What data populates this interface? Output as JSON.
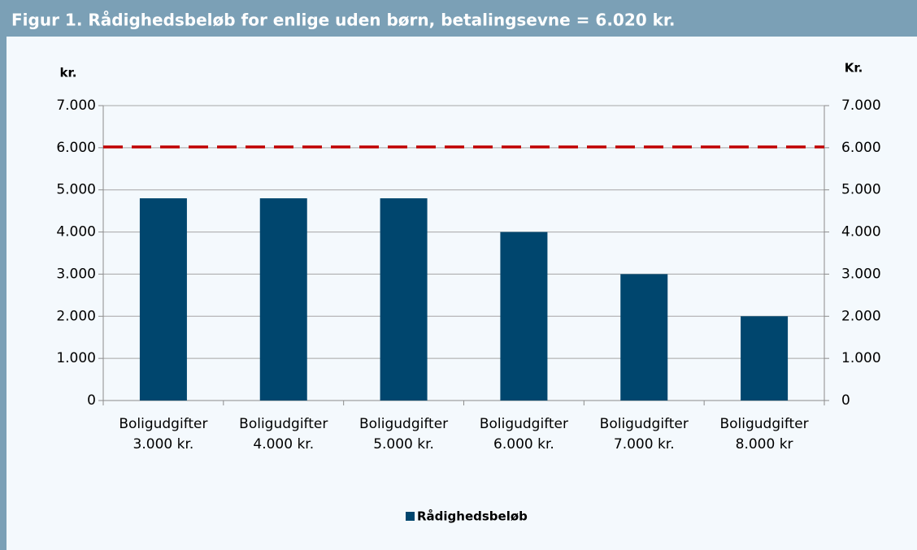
{
  "chart_data": {
    "type": "bar",
    "title": "Figur 1. Rådighedsbeløb for enlige uden børn, betalingsevne = 6.020 kr.",
    "ylabel": "kr.",
    "y2label": "Kr.",
    "categories": [
      [
        "Boligudgifter",
        "3.000 kr."
      ],
      [
        "Boligudgifter",
        "4.000 kr."
      ],
      [
        "Boligudgifter",
        "5.000 kr."
      ],
      [
        "Boligudgifter",
        "6.000 kr."
      ],
      [
        "Boligudgifter",
        "7.000 kr."
      ],
      [
        "Boligudgifter",
        "8.000 kr"
      ]
    ],
    "series": [
      {
        "name": "Rådighedsbeløb",
        "color": "#00466e",
        "values": [
          4800,
          4800,
          4800,
          4000,
          3000,
          2000
        ]
      }
    ],
    "reference_line": {
      "value": 6020,
      "color": "#c00000"
    },
    "ylim": [
      0,
      7000
    ],
    "yticks": [
      0,
      {
        "value": 1000,
        "label": "1.000"
      },
      {
        "value": 2000,
        "label": "2.000"
      },
      {
        "value": 3000,
        "label": "3.000"
      },
      {
        "value": 4000,
        "label": "4.000"
      },
      {
        "value": 5000,
        "label": "5.000"
      },
      {
        "value": 6000,
        "label": "6.000"
      },
      {
        "value": 7000,
        "label": "7.000"
      }
    ],
    "y2lim": [
      0,
      7000
    ],
    "y2ticks": [
      0,
      {
        "value": 1000,
        "label": "1.000"
      },
      {
        "value": 2000,
        "label": "2.000"
      },
      {
        "value": 3000,
        "label": "3.000"
      },
      {
        "value": 4000,
        "label": "4.000"
      },
      {
        "value": 5000,
        "label": "5.000"
      },
      {
        "value": 6000,
        "label": "6.000"
      },
      {
        "value": 7000,
        "label": "7.000"
      }
    ],
    "grid": true,
    "legend": "bottom"
  }
}
